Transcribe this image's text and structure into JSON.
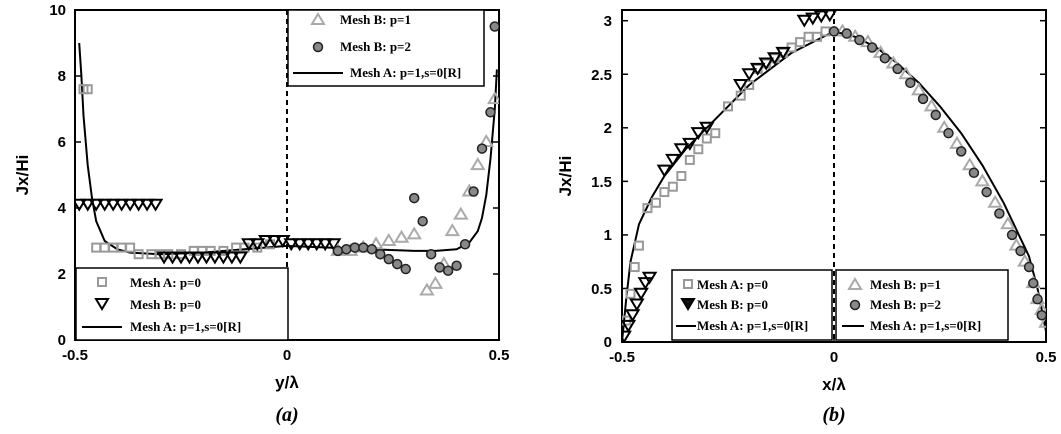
{
  "chart_data": [
    {
      "type": "scatter",
      "caption": "(a)",
      "xlabel": "y/λ",
      "ylabel": "Jx/Hi",
      "xlim": [
        -0.5,
        0.5
      ],
      "ylim": [
        0,
        10
      ],
      "xticks": [
        "-0.5",
        "0",
        "0.5"
      ],
      "yticks": [
        "0",
        "2",
        "4",
        "6",
        "8",
        "10"
      ],
      "grid": false,
      "legends": [
        "top-right",
        "bottom-left"
      ],
      "series": [
        {
          "name": "Mesh A: p=0",
          "marker": "square",
          "color": "#999999",
          "x": [
            -0.48,
            -0.47,
            -0.45,
            -0.43,
            -0.41,
            -0.39,
            -0.37,
            -0.35,
            -0.32,
            -0.3,
            -0.28,
            -0.25,
            -0.22,
            -0.2,
            -0.18,
            -0.15,
            -0.12,
            -0.1,
            -0.07,
            -0.04
          ],
          "y": [
            7.6,
            7.6,
            2.8,
            2.8,
            2.8,
            2.8,
            2.8,
            2.6,
            2.6,
            2.6,
            2.6,
            2.6,
            2.7,
            2.7,
            2.7,
            2.7,
            2.8,
            2.8,
            2.8,
            2.9
          ]
        },
        {
          "name": "Mesh B: p=0",
          "marker": "triangle-down",
          "color": "#000000",
          "x": [
            -0.49,
            -0.47,
            -0.45,
            -0.43,
            -0.41,
            -0.39,
            -0.37,
            -0.35,
            -0.33,
            -0.31,
            -0.29,
            -0.27,
            -0.25,
            -0.23,
            -0.21,
            -0.19,
            -0.17,
            -0.15,
            -0.13,
            -0.11,
            -0.09,
            -0.07,
            -0.05,
            -0.03,
            -0.01,
            0.01,
            0.03,
            0.05,
            0.07,
            0.09,
            0.11
          ],
          "y": [
            4.1,
            4.1,
            4.1,
            4.1,
            4.1,
            4.1,
            4.1,
            4.1,
            4.1,
            4.1,
            2.5,
            2.5,
            2.5,
            2.5,
            2.5,
            2.5,
            2.5,
            2.5,
            2.5,
            2.5,
            2.9,
            2.9,
            3.0,
            3.0,
            3.0,
            2.9,
            2.9,
            2.9,
            2.9,
            2.9,
            2.9
          ]
        },
        {
          "name": "Mesh B: p=1",
          "marker": "triangle-up",
          "color": "#aaaaaa",
          "x": [
            0.12,
            0.15,
            0.18,
            0.21,
            0.24,
            0.27,
            0.3,
            0.33,
            0.35,
            0.37,
            0.39,
            0.41,
            0.43,
            0.45,
            0.47,
            0.49
          ],
          "y": [
            2.7,
            2.7,
            2.8,
            2.9,
            3.0,
            3.1,
            3.2,
            1.5,
            1.7,
            2.3,
            3.3,
            3.8,
            4.5,
            5.3,
            6.0,
            7.3
          ]
        },
        {
          "name": "Mesh B: p=2",
          "marker": "circle",
          "color": "#555555",
          "x": [
            0.12,
            0.14,
            0.16,
            0.18,
            0.2,
            0.22,
            0.24,
            0.26,
            0.28,
            0.3,
            0.32,
            0.34,
            0.36,
            0.38,
            0.4,
            0.42,
            0.44,
            0.46,
            0.48,
            0.49
          ],
          "y": [
            2.7,
            2.75,
            2.8,
            2.8,
            2.75,
            2.6,
            2.45,
            2.3,
            2.15,
            4.3,
            3.6,
            2.6,
            2.2,
            2.1,
            2.25,
            2.9,
            4.5,
            5.8,
            6.9,
            9.5
          ]
        },
        {
          "name": "Mesh A: p=1,s=0[R]",
          "type": "line",
          "color": "#000000",
          "x": [
            -0.49,
            -0.485,
            -0.48,
            -0.47,
            -0.46,
            -0.45,
            -0.43,
            -0.4,
            -0.37,
            -0.3,
            -0.2,
            -0.1,
            0.0,
            0.1,
            0.2,
            0.3,
            0.35,
            0.4,
            0.43,
            0.45,
            0.46,
            0.47,
            0.48,
            0.49,
            0.495
          ],
          "y": [
            9.0,
            8.0,
            6.8,
            5.3,
            4.3,
            3.6,
            3.0,
            2.75,
            2.65,
            2.6,
            2.65,
            2.75,
            2.85,
            2.8,
            2.75,
            2.7,
            2.7,
            2.75,
            2.95,
            3.3,
            3.7,
            4.4,
            5.5,
            7.0,
            8.2
          ]
        }
      ]
    },
    {
      "type": "scatter",
      "caption": "(b)",
      "xlabel": "x/λ",
      "ylabel": "Jx/Hi",
      "xlim": [
        -0.5,
        0.5
      ],
      "ylim": [
        0,
        3.1
      ],
      "xticks": [
        "-0.5",
        "0",
        "0.5"
      ],
      "yticks": [
        "0",
        "0.5",
        "1",
        "1.5",
        "2",
        "2.5",
        "3"
      ],
      "grid": false,
      "legends": [
        "bottom-left",
        "bottom-right"
      ],
      "series": [
        {
          "name": "Mesh A: p=0",
          "marker": "square",
          "color": "#999999",
          "x": [
            -0.49,
            -0.48,
            -0.47,
            -0.46,
            -0.44,
            -0.42,
            -0.4,
            -0.38,
            -0.36,
            -0.34,
            -0.32,
            -0.3,
            -0.28,
            -0.25,
            -0.22,
            -0.2,
            -0.18,
            -0.16,
            -0.14,
            -0.12,
            -0.1,
            -0.08,
            -0.06,
            -0.04,
            -0.02
          ],
          "y": [
            0.2,
            0.45,
            0.7,
            0.9,
            1.25,
            1.3,
            1.4,
            1.45,
            1.55,
            1.7,
            1.8,
            1.9,
            1.95,
            2.2,
            2.3,
            2.4,
            2.55,
            2.6,
            2.65,
            2.7,
            2.75,
            2.8,
            2.85,
            2.85,
            2.9
          ]
        },
        {
          "name": "Mesh B: p=0",
          "marker": "triangle-down",
          "color": "#000000",
          "x": [
            -0.495,
            -0.485,
            -0.475,
            -0.465,
            -0.455,
            -0.445,
            -0.435,
            -0.4,
            -0.38,
            -0.36,
            -0.34,
            -0.32,
            -0.3,
            -0.22,
            -0.2,
            -0.18,
            -0.16,
            -0.14,
            -0.12,
            -0.07,
            -0.05,
            -0.03,
            -0.01
          ],
          "y": [
            0.05,
            0.15,
            0.25,
            0.35,
            0.45,
            0.55,
            0.6,
            1.6,
            1.7,
            1.8,
            1.85,
            1.95,
            2.0,
            2.4,
            2.5,
            2.55,
            2.6,
            2.65,
            2.7,
            3.0,
            3.02,
            3.04,
            3.05
          ]
        },
        {
          "name": "Mesh B: p=1",
          "marker": "triangle-up",
          "color": "#aaaaaa",
          "x": [
            0.02,
            0.05,
            0.08,
            0.11,
            0.14,
            0.17,
            0.2,
            0.23,
            0.26,
            0.29,
            0.32,
            0.35,
            0.38,
            0.41,
            0.43,
            0.45,
            0.47,
            0.48,
            0.49,
            0.5
          ],
          "y": [
            2.9,
            2.85,
            2.8,
            2.7,
            2.6,
            2.5,
            2.35,
            2.2,
            2.0,
            1.85,
            1.65,
            1.5,
            1.3,
            1.1,
            0.9,
            0.75,
            0.55,
            0.4,
            0.3,
            0.18
          ]
        },
        {
          "name": "Mesh B: p=2",
          "marker": "circle",
          "color": "#555555",
          "x": [
            0.0,
            0.03,
            0.06,
            0.09,
            0.12,
            0.15,
            0.18,
            0.21,
            0.24,
            0.27,
            0.3,
            0.33,
            0.36,
            0.39,
            0.42,
            0.44,
            0.46,
            0.47,
            0.48,
            0.49
          ],
          "y": [
            2.9,
            2.88,
            2.82,
            2.75,
            2.65,
            2.55,
            2.42,
            2.27,
            2.12,
            1.95,
            1.78,
            1.58,
            1.4,
            1.2,
            1.0,
            0.85,
            0.7,
            0.55,
            0.4,
            0.25
          ]
        },
        {
          "name": "Mesh A: p=1,s=0[R]",
          "type": "line",
          "color": "#000000",
          "x": [
            -0.5,
            -0.49,
            -0.48,
            -0.46,
            -0.43,
            -0.4,
            -0.35,
            -0.3,
            -0.25,
            -0.2,
            -0.15,
            -0.1,
            -0.05,
            0.0,
            0.05,
            0.1,
            0.15,
            0.2,
            0.25,
            0.3,
            0.35,
            0.4,
            0.43,
            0.46,
            0.48,
            0.49,
            0.5
          ],
          "y": [
            0.0,
            0.4,
            0.75,
            1.1,
            1.35,
            1.55,
            1.8,
            2.0,
            2.2,
            2.4,
            2.55,
            2.7,
            2.8,
            2.9,
            2.85,
            2.75,
            2.6,
            2.42,
            2.2,
            1.95,
            1.65,
            1.3,
            1.05,
            0.8,
            0.5,
            0.3,
            0.1
          ]
        }
      ]
    }
  ]
}
